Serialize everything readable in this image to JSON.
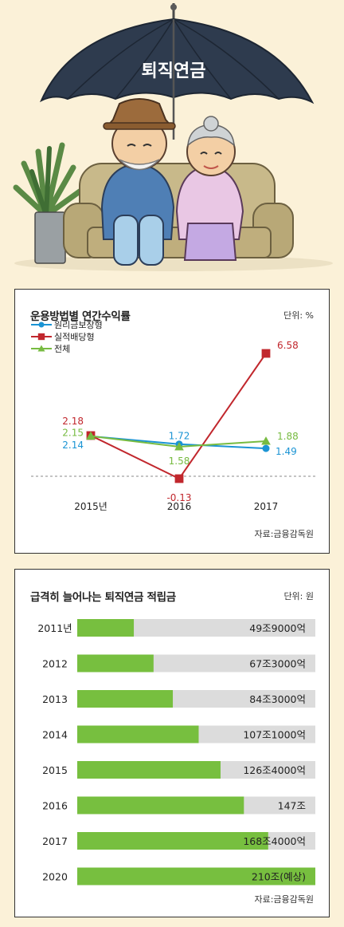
{
  "illustration": {
    "umbrella_label": "퇴직연금"
  },
  "colors": {
    "principal": "#1b94d4",
    "performance": "#c1272d",
    "total": "#77bb41",
    "bar_fill": "#77bf3f",
    "bar_track": "#dcdcdc"
  },
  "chart_data": [
    {
      "type": "line",
      "title": "운용방법별 연간수익률",
      "unit": "단위: %",
      "source": "자료:금융감독원",
      "categories": [
        "2015년",
        "2016",
        "2017"
      ],
      "series": [
        {
          "name": "원리금보장형",
          "values": [
            2.14,
            1.72,
            1.49
          ],
          "labels": [
            "2.14",
            "1.72",
            "1.49"
          ]
        },
        {
          "name": "실적배당형",
          "values": [
            2.18,
            -0.13,
            6.58
          ],
          "labels": [
            "2.18",
            "-0.13",
            "6.58"
          ]
        },
        {
          "name": "전체",
          "values": [
            2.15,
            1.58,
            1.88
          ],
          "labels": [
            "2.15",
            "1.58",
            "1.88"
          ]
        }
      ],
      "baseline": 0
    },
    {
      "type": "bar",
      "orientation": "horizontal",
      "title": "급격히 늘어나는 퇴직연금 적립금",
      "unit": "단위: 원",
      "source": "자료:금융감독원",
      "categories": [
        "2011년",
        "2012",
        "2013",
        "2014",
        "2015",
        "2016",
        "2017",
        "2020"
      ],
      "values": [
        49.9,
        67.3,
        84.3,
        107.1,
        126.4,
        147,
        168.4,
        210
      ],
      "labels": [
        "49조9000억",
        "67조3000억",
        "84조3000억",
        "107조1000억",
        "126조4000억",
        "147조",
        "168조4000억",
        "210조(예상)"
      ],
      "xlim": [
        0,
        210
      ]
    }
  ]
}
